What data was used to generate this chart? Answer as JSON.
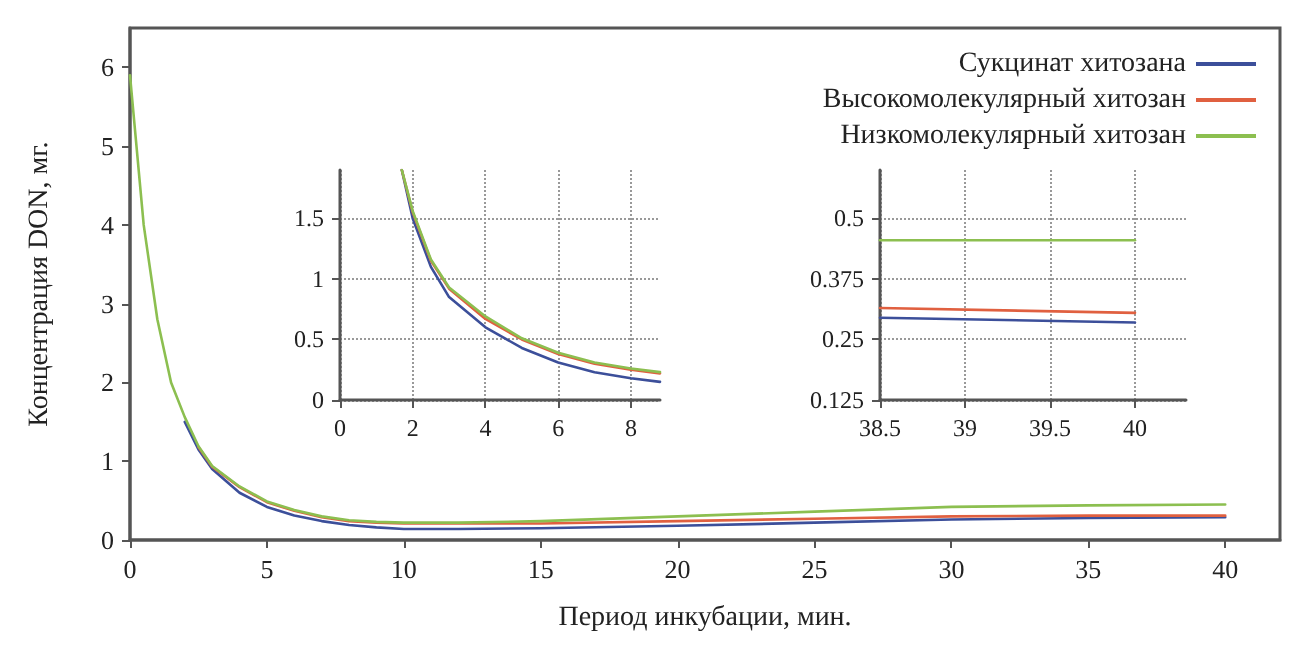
{
  "chart_data": [
    {
      "type": "line",
      "xlabel": "Период инкубации, мин.",
      "ylabel": "Концентрация DON, мг.",
      "xlim": [
        0,
        42
      ],
      "ylim": [
        0,
        6.5
      ],
      "xticks": [
        0,
        5,
        10,
        15,
        20,
        25,
        30,
        35,
        40
      ],
      "yticks": [
        0,
        1,
        2,
        3,
        4,
        5,
        6
      ],
      "grid": false,
      "legend": "top right",
      "marker": "none",
      "series": [
        {
          "name": "Сукцинат хитозана",
          "color": "#3c4f9a",
          "x": [
            2,
            2.5,
            3,
            4,
            5,
            6,
            7,
            8,
            9,
            10,
            12,
            15,
            20,
            25,
            30,
            35,
            40
          ],
          "values": [
            1.5,
            1.15,
            0.9,
            0.6,
            0.42,
            0.31,
            0.24,
            0.19,
            0.16,
            0.14,
            0.14,
            0.15,
            0.18,
            0.22,
            0.26,
            0.28,
            0.29
          ]
        },
        {
          "name": "Высокомолекулярный хитозан",
          "color": "#e06040",
          "x": [
            2.5,
            3,
            4,
            5,
            6,
            7,
            8,
            9,
            10,
            12,
            15,
            20,
            25,
            30,
            35,
            40
          ],
          "values": [
            1.18,
            0.93,
            0.67,
            0.48,
            0.37,
            0.29,
            0.24,
            0.22,
            0.21,
            0.21,
            0.21,
            0.24,
            0.27,
            0.3,
            0.31,
            0.31
          ]
        },
        {
          "name": "Низкомолекулярный хитозан",
          "color": "#8cbf50",
          "x": [
            0,
            0.5,
            1,
            1.5,
            2,
            2.5,
            3,
            4,
            5,
            6,
            7,
            8,
            9,
            10,
            12,
            15,
            20,
            25,
            30,
            35,
            40
          ],
          "values": [
            5.9,
            4.0,
            2.8,
            2.0,
            1.56,
            1.19,
            0.94,
            0.68,
            0.49,
            0.38,
            0.3,
            0.25,
            0.23,
            0.22,
            0.22,
            0.24,
            0.3,
            0.36,
            0.42,
            0.44,
            0.45
          ]
        }
      ]
    },
    {
      "type": "line",
      "xlim": [
        0,
        8.8
      ],
      "ylim": [
        0,
        1.9
      ],
      "xticks": [
        0,
        2,
        4,
        6,
        8
      ],
      "yticks": [
        0,
        0.5,
        1,
        1.5
      ],
      "grid": true,
      "marker": "none",
      "series": [
        {
          "color": "#3c4f9a",
          "x": [
            1.7,
            2,
            2.5,
            3,
            4,
            5,
            6,
            7,
            8,
            8.8
          ],
          "values": [
            1.9,
            1.5,
            1.1,
            0.85,
            0.6,
            0.43,
            0.31,
            0.23,
            0.18,
            0.15
          ]
        },
        {
          "color": "#e06040",
          "x": [
            1.7,
            2,
            2.5,
            3,
            4,
            5,
            6,
            7,
            8,
            8.8
          ],
          "values": [
            1.9,
            1.55,
            1.15,
            0.92,
            0.67,
            0.5,
            0.38,
            0.3,
            0.25,
            0.22
          ]
        },
        {
          "color": "#8cbf50",
          "x": [
            1.7,
            2,
            2.5,
            3,
            4,
            5,
            6,
            7,
            8,
            8.8
          ],
          "values": [
            1.9,
            1.56,
            1.16,
            0.93,
            0.69,
            0.51,
            0.39,
            0.31,
            0.26,
            0.23
          ]
        }
      ]
    },
    {
      "type": "line",
      "xlim": [
        38.5,
        40.3
      ],
      "ylim": [
        0.125,
        0.6
      ],
      "xticks": [
        38.5,
        39,
        39.5,
        40
      ],
      "yticks": [
        0.125,
        0.25,
        0.375,
        0.5
      ],
      "grid": true,
      "marker": "none",
      "series": [
        {
          "color": "#3c4f9a",
          "x": [
            38.5,
            40
          ],
          "values": [
            0.295,
            0.285
          ]
        },
        {
          "color": "#e06040",
          "x": [
            38.5,
            40
          ],
          "values": [
            0.315,
            0.305
          ]
        },
        {
          "color": "#8cbf50",
          "x": [
            38.5,
            40
          ],
          "values": [
            0.455,
            0.455
          ]
        }
      ]
    }
  ]
}
